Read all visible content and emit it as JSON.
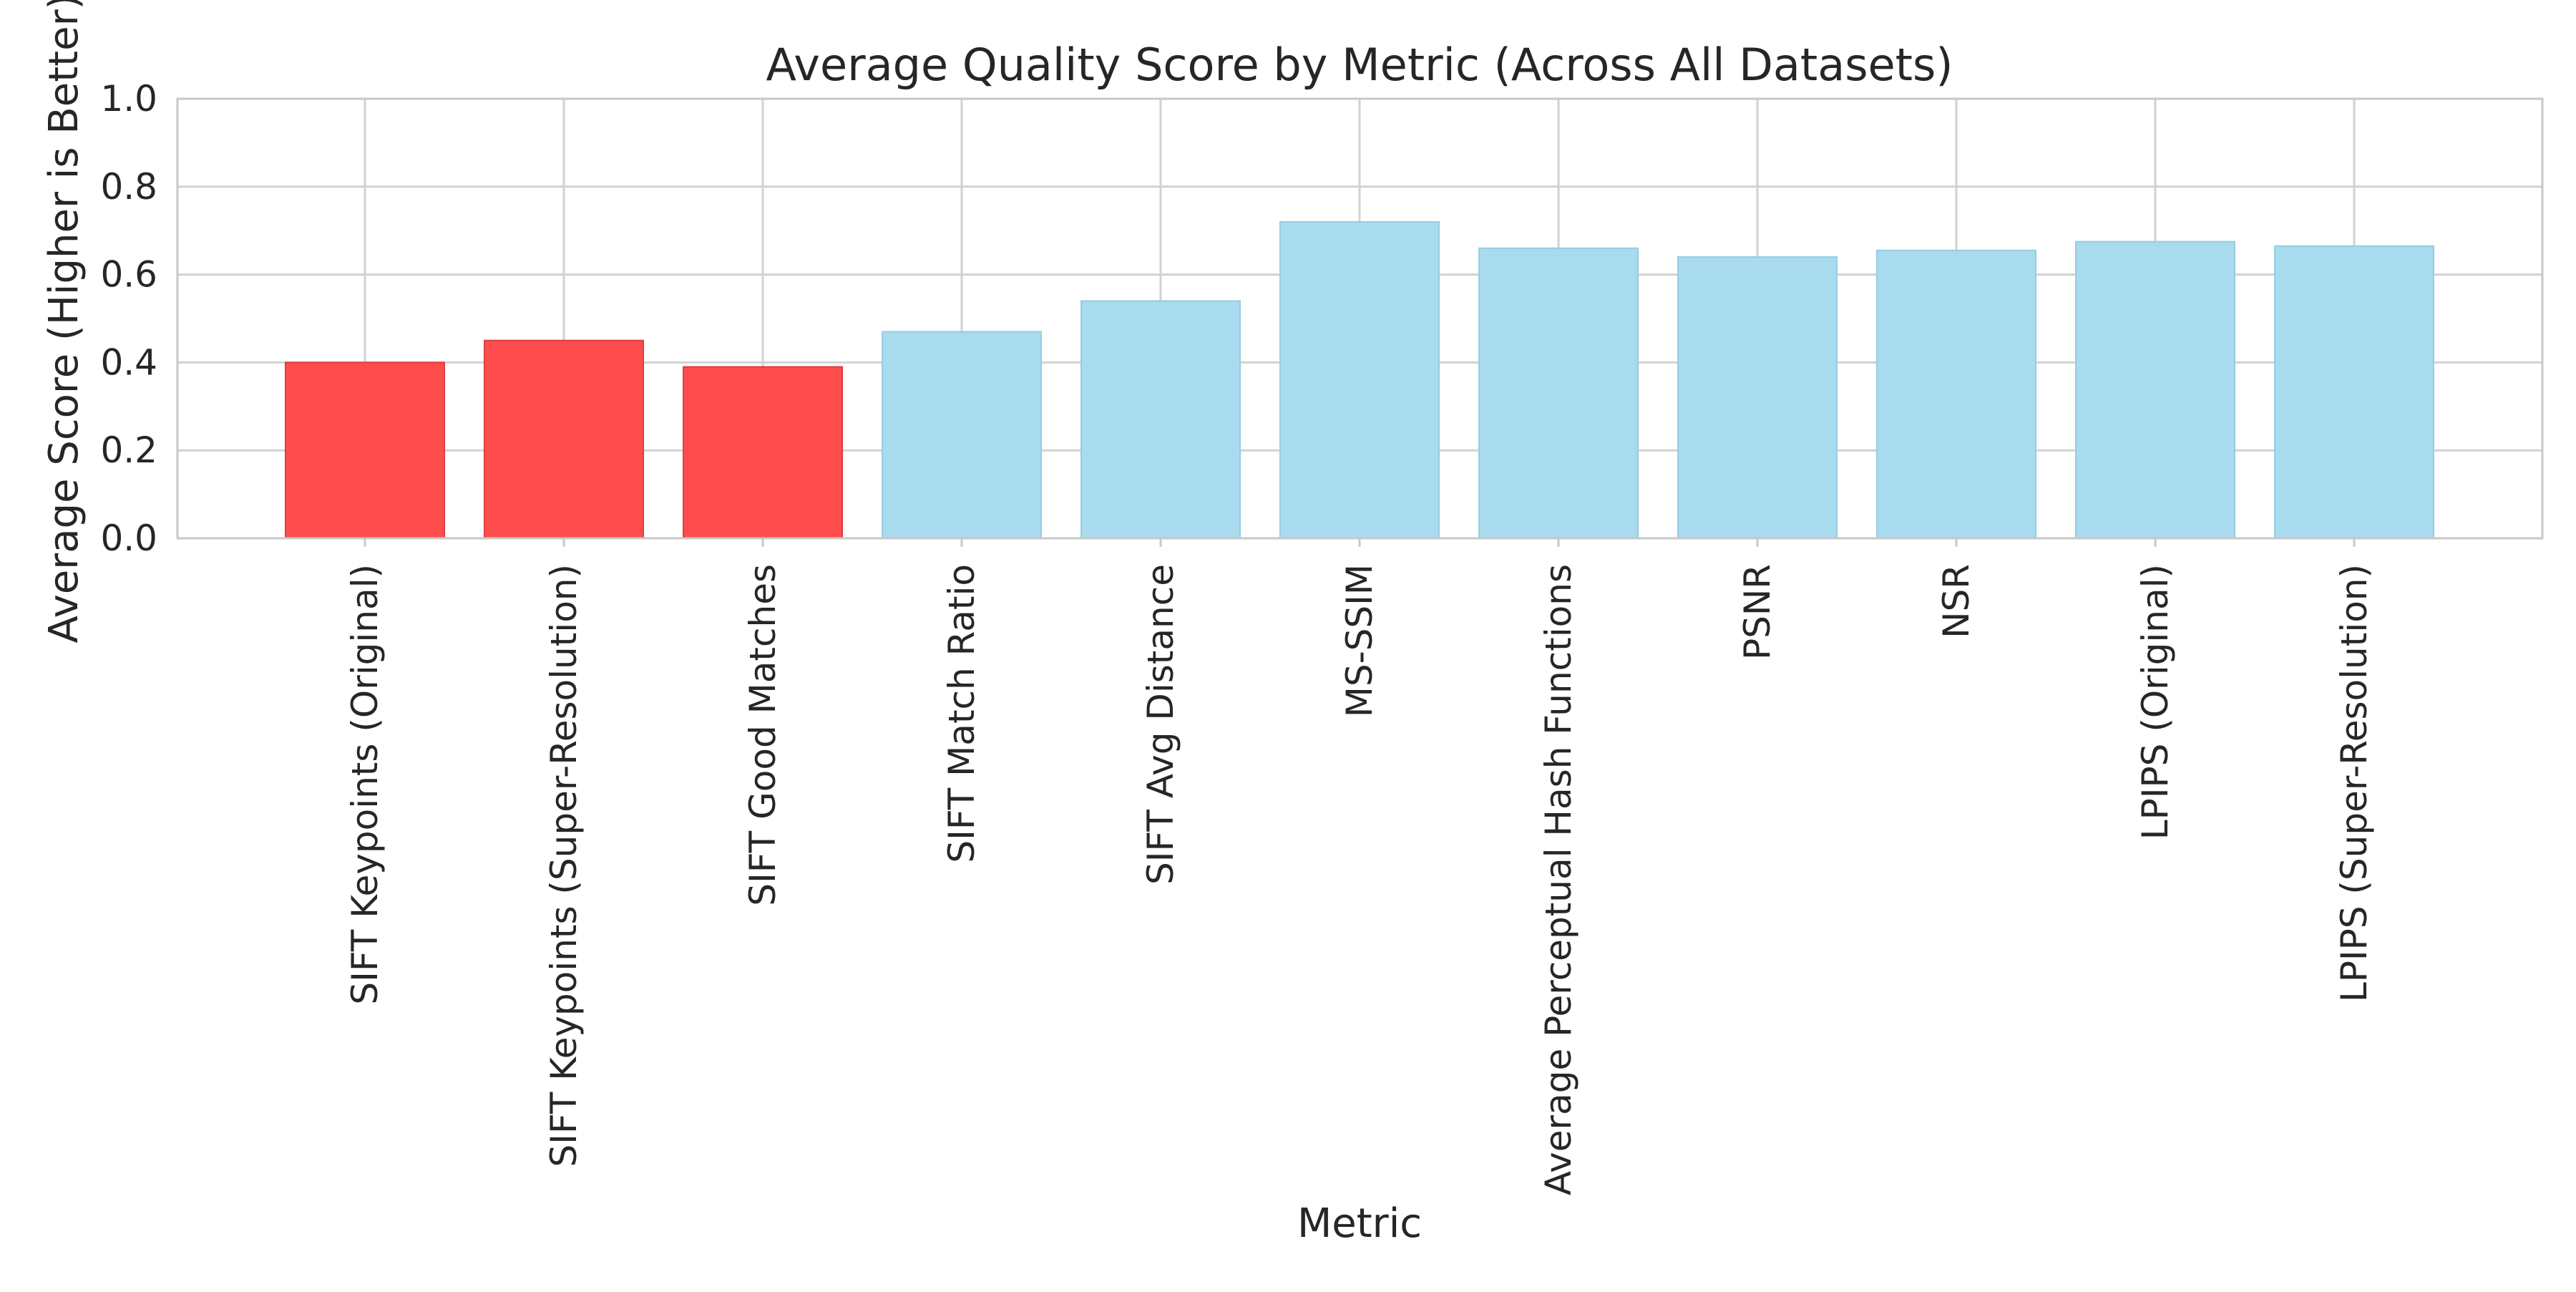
{
  "chart_data": {
    "type": "bar",
    "title": "Average Quality Score by Metric (Across All Datasets)",
    "xlabel": "Metric",
    "ylabel": "Average Score (Higher is Better)",
    "ylim": [
      0,
      1.0
    ],
    "yticks": [
      "0.0",
      "0.2",
      "0.4",
      "0.6",
      "0.8",
      "1.0"
    ],
    "grid": true,
    "categories": [
      "SIFT Keypoints (Original)",
      "SIFT Keypoints (Super-Resolution)",
      "SIFT Good Matches",
      "SIFT Match Ratio",
      "SIFT Avg Distance",
      "MS-SSIM",
      "Average Perceptual Hash Functions",
      "PSNR",
      "NSR",
      "LPIPS (Original)",
      "LPIPS (Super-Resolution)"
    ],
    "values": [
      0.4,
      0.45,
      0.39,
      0.47,
      0.54,
      0.72,
      0.66,
      0.64,
      0.655,
      0.675,
      0.665
    ],
    "bar_colors": [
      "#ff4d4d",
      "#ff4d4d",
      "#ff4d4d",
      "#a8dbed",
      "#a8dbed",
      "#a8dbed",
      "#a8dbed",
      "#a8dbed",
      "#a8dbed",
      "#a8dbed",
      "#a8dbed"
    ],
    "colors": {
      "highlight": "#ff4d4d",
      "highlight_edge": "#e03c3c",
      "normal": "#a8dbed",
      "normal_edge": "#95cde2",
      "grid": "#d2d2d2",
      "frame": "#c8c8c8",
      "text": "#262626"
    }
  }
}
